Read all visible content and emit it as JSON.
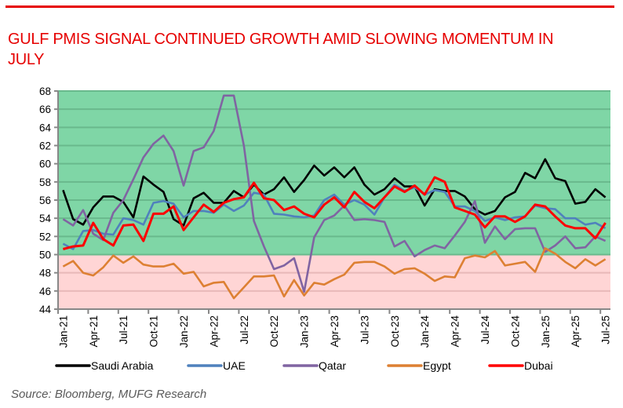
{
  "title": "GULF PMIS SIGNAL CONTINUED GROWTH AMID SLOWING MOMENTUM IN JULY",
  "source": "Source: Bloomberg, MUFG Research",
  "colors": {
    "accent": "#e60000",
    "expansion_zone": "#7fd6a6",
    "contraction_zone": "#ffd5d5",
    "grid_expansion": "#69b98c",
    "grid_contraction": "#e8b9b9",
    "axis": "#888888"
  },
  "chart_data": {
    "type": "line",
    "title": "GULF PMIS SIGNAL CONTINUED GROWTH AMID SLOWING MOMENTUM IN JULY",
    "xlabel": "",
    "ylabel": "",
    "ylim": [
      44,
      68
    ],
    "yticks": [
      44,
      46,
      48,
      50,
      52,
      54,
      56,
      58,
      60,
      62,
      64,
      66,
      68
    ],
    "threshold": 50,
    "grid": true,
    "legend_position": "bottom",
    "x": [
      "Jan-21",
      "Feb-21",
      "Mar-21",
      "Apr-21",
      "May-21",
      "Jun-21",
      "Jul-21",
      "Aug-21",
      "Sep-21",
      "Oct-21",
      "Nov-21",
      "Dec-21",
      "Jan-22",
      "Feb-22",
      "Mar-22",
      "Apr-22",
      "May-22",
      "Jun-22",
      "Jul-22",
      "Aug-22",
      "Sep-22",
      "Oct-22",
      "Nov-22",
      "Dec-22",
      "Jan-23",
      "Feb-23",
      "Mar-23",
      "Apr-23",
      "May-23",
      "Jun-23",
      "Jul-23",
      "Aug-23",
      "Sep-23",
      "Oct-23",
      "Nov-23",
      "Dec-23",
      "Jan-24",
      "Feb-24",
      "Mar-24",
      "Apr-24",
      "May-24",
      "Jun-24",
      "Jul-24",
      "Aug-24",
      "Sep-24",
      "Oct-24",
      "Nov-24",
      "Dec-24",
      "Jan-25",
      "Feb-25",
      "Mar-25",
      "Apr-25",
      "May-25",
      "Jun-25",
      "Jul-25"
    ],
    "xtick_labels": [
      "Jan-21",
      "Apr-21",
      "Jul-21",
      "Oct-21",
      "Jan-22",
      "Apr-22",
      "Jul-22",
      "Oct-22",
      "Jan-23",
      "Apr-23",
      "Jul-23",
      "Oct-23",
      "Jan-24",
      "Apr-24",
      "Jul-24",
      "Oct-24",
      "Jan-25",
      "Apr-25",
      "Jul-25"
    ],
    "series": [
      {
        "name": "Saudi Arabia",
        "color": "#000000",
        "values": [
          57.1,
          53.9,
          53.3,
          55.2,
          56.4,
          56.4,
          55.8,
          54.1,
          58.6,
          57.7,
          56.9,
          53.9,
          53.2,
          56.2,
          56.8,
          55.7,
          55.7,
          57.0,
          56.3,
          57.7,
          56.6,
          57.2,
          58.5,
          56.9,
          58.2,
          59.8,
          58.7,
          59.6,
          58.5,
          59.6,
          57.7,
          56.6,
          57.2,
          58.4,
          57.5,
          57.5,
          55.4,
          57.2,
          57.0,
          57.0,
          56.4,
          55.0,
          54.4,
          54.8,
          56.3,
          56.9,
          59.0,
          58.4,
          60.5,
          58.4,
          58.1,
          55.6,
          55.8,
          57.2,
          56.3
        ]
      },
      {
        "name": "UAE",
        "color": "#4f81bd",
        "values": [
          51.2,
          50.6,
          52.6,
          52.7,
          52.3,
          52.2,
          54.0,
          53.8,
          53.3,
          55.7,
          55.9,
          55.6,
          54.1,
          54.8,
          54.8,
          54.6,
          55.5,
          54.8,
          55.4,
          56.8,
          56.6,
          54.5,
          54.4,
          54.2,
          54.1,
          54.3,
          56.0,
          56.6,
          55.5,
          56.0,
          55.5,
          54.4,
          56.3,
          57.7,
          57.0,
          57.4,
          56.6,
          57.1,
          56.9,
          55.3,
          55.3,
          54.8,
          53.7,
          54.1,
          53.8,
          54.1,
          54.2,
          55.4,
          55.1,
          55.0,
          54.0,
          54.0,
          53.3,
          53.5,
          52.9
        ]
      },
      {
        "name": "Qatar",
        "color": "#8064a2",
        "values": [
          53.9,
          53.2,
          54.9,
          52.3,
          51.6,
          54.6,
          56.0,
          58.3,
          60.7,
          62.2,
          63.1,
          61.4,
          57.6,
          61.4,
          61.8,
          63.6,
          67.5,
          67.5,
          62.0,
          53.7,
          50.9,
          48.4,
          48.8,
          49.6,
          45.9,
          51.9,
          53.8,
          54.3,
          55.4,
          53.8,
          53.9,
          53.8,
          53.6,
          50.9,
          51.5,
          49.8,
          50.5,
          51.0,
          50.7,
          52.1,
          53.6,
          55.9,
          51.3,
          53.1,
          51.7,
          52.8,
          52.9,
          52.9,
          50.3,
          51.0,
          52.0,
          50.7,
          50.8,
          52.0,
          51.5
        ]
      },
      {
        "name": "Egypt",
        "color": "#dd8033",
        "values": [
          48.7,
          49.3,
          48.0,
          47.7,
          48.6,
          49.9,
          49.1,
          49.8,
          48.9,
          48.7,
          48.7,
          49.0,
          47.9,
          48.1,
          46.5,
          46.9,
          47.0,
          45.2,
          46.4,
          47.6,
          47.6,
          47.7,
          45.4,
          47.2,
          45.5,
          46.9,
          46.7,
          47.3,
          47.8,
          49.1,
          49.2,
          49.2,
          48.7,
          47.9,
          48.4,
          48.5,
          47.9,
          47.1,
          47.6,
          47.5,
          49.6,
          49.9,
          49.7,
          50.4,
          48.8,
          49.0,
          49.2,
          48.1,
          50.7,
          50.1,
          49.2,
          48.5,
          49.5,
          48.8,
          49.5
        ]
      },
      {
        "name": "Dubai",
        "color": "#ff0000",
        "values": [
          50.6,
          50.9,
          51.0,
          53.5,
          51.7,
          51.0,
          53.2,
          53.3,
          51.5,
          54.5,
          54.5,
          55.3,
          52.7,
          54.1,
          55.5,
          54.7,
          55.7,
          56.1,
          56.3,
          57.9,
          56.2,
          56.0,
          54.9,
          55.3,
          54.5,
          54.1,
          55.5,
          56.3,
          55.2,
          56.9,
          55.8,
          55.1,
          56.3,
          57.5,
          56.9,
          57.6,
          56.6,
          58.5,
          58.0,
          55.2,
          54.8,
          54.4,
          53.0,
          54.2,
          54.2,
          53.6,
          54.2,
          55.5,
          55.3,
          54.2,
          53.2,
          52.9,
          52.9,
          51.8,
          53.5
        ]
      }
    ]
  }
}
